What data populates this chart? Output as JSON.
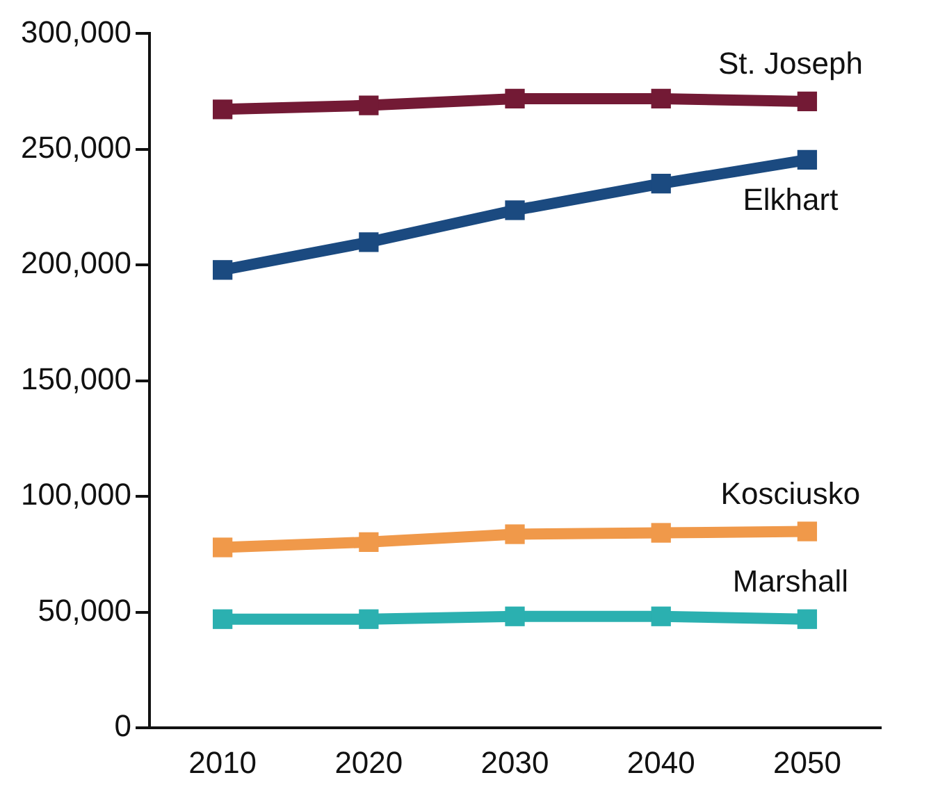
{
  "chart_data": {
    "type": "line",
    "categories": [
      "2010",
      "2020",
      "2030",
      "2040",
      "2050"
    ],
    "series": [
      {
        "name": "St. Joseph",
        "color": "#731a35",
        "values": [
          267300,
          269000,
          271900,
          271900,
          270700
        ]
      },
      {
        "name": "Elkhart",
        "color": "#1b4a80",
        "values": [
          197900,
          209900,
          223700,
          235200,
          245500
        ]
      },
      {
        "name": "Kosciusko",
        "color": "#f0994a",
        "values": [
          78000,
          80300,
          83700,
          84300,
          84900
        ]
      },
      {
        "name": "Marshall",
        "color": "#2bb0b0",
        "values": [
          47000,
          47000,
          48200,
          48200,
          47000
        ]
      }
    ],
    "ylim": [
      0,
      300000
    ],
    "yticks": [
      {
        "value": 0,
        "label": "0"
      },
      {
        "value": 50000,
        "label": "50,000"
      },
      {
        "value": 100000,
        "label": "100,000"
      },
      {
        "value": 150000,
        "label": "150,000"
      },
      {
        "value": 200000,
        "label": "200,000"
      },
      {
        "value": 250000,
        "label": "250,000"
      },
      {
        "value": 300000,
        "label": "300,000"
      }
    ],
    "grid": false,
    "legend": false,
    "marker": "square",
    "line_style": "solid"
  }
}
